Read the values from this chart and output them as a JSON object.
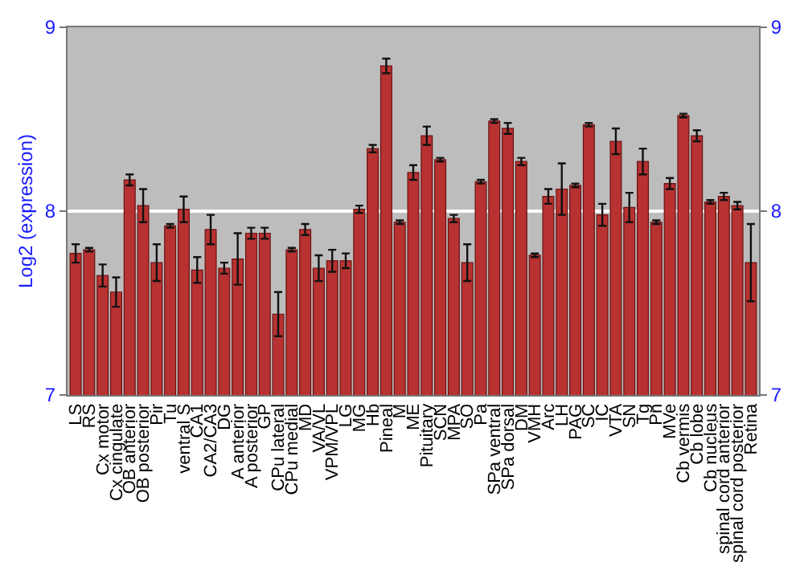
{
  "chart_data": {
    "type": "bar",
    "ylabel": "Log2 (expression)",
    "categories": [
      "LS",
      "RS",
      "Cx motor",
      "Cx cingulate",
      "OB anterior",
      "OB posterior",
      "Pir",
      "Tu",
      "ventral S",
      "CA1",
      "CA2/CA3",
      "DG",
      "A anterior",
      "A posterior",
      "GP",
      "CPu lateral",
      "CPu medial",
      "MD",
      "VA/VL",
      "VPM/VPL",
      "LG",
      "MG",
      "Hb",
      "Pineal",
      "M",
      "ME",
      "Pituitary",
      "SCN",
      "MPA",
      "SO",
      "Pa",
      "SPa ventral",
      "SPa dorsal",
      "DM",
      "VMH",
      "Arc",
      "LH",
      "PAG",
      "SC",
      "IC",
      "VTA",
      "SN",
      "Tg",
      "Pn",
      "MVe",
      "Cb vermis",
      "Cb lobe",
      "Cb nucleus",
      "spinal cord anterior",
      "spinal cord posterior",
      "Retina"
    ],
    "series": [
      {
        "color": "#b83232",
        "values": [
          7.77,
          7.79,
          7.65,
          7.56,
          8.17,
          8.03,
          7.72,
          7.92,
          8.01,
          7.68,
          7.9,
          7.69,
          7.74,
          7.88,
          7.88,
          7.44,
          7.79,
          7.9,
          7.69,
          7.73,
          7.73,
          8.01,
          8.34,
          8.79,
          7.94,
          8.21,
          8.41,
          8.28,
          7.96,
          7.72,
          8.16,
          8.49,
          8.45,
          8.27,
          7.76,
          8.08,
          8.12,
          8.14,
          8.47,
          7.98,
          8.38,
          8.02,
          8.27,
          7.94,
          8.15,
          8.52,
          8.41,
          8.05,
          8.08,
          8.03,
          7.72
        ],
        "errors": [
          0.05,
          0.01,
          0.06,
          0.08,
          0.03,
          0.09,
          0.1,
          0.01,
          0.07,
          0.07,
          0.08,
          0.03,
          0.14,
          0.03,
          0.03,
          0.12,
          0.01,
          0.03,
          0.07,
          0.06,
          0.04,
          0.02,
          0.02,
          0.04,
          0.01,
          0.04,
          0.05,
          0.01,
          0.02,
          0.1,
          0.01,
          0.01,
          0.03,
          0.02,
          0.01,
          0.04,
          0.14,
          0.01,
          0.01,
          0.06,
          0.07,
          0.08,
          0.07,
          0.01,
          0.03,
          0.01,
          0.03,
          0.01,
          0.02,
          0.02,
          0.21
        ]
      }
    ],
    "ylim": [
      7,
      9
    ],
    "yticks": [
      7,
      8,
      9
    ],
    "y2lim": [
      7,
      9
    ],
    "y2ticks": [
      7,
      8,
      9
    ],
    "grid": "y"
  }
}
